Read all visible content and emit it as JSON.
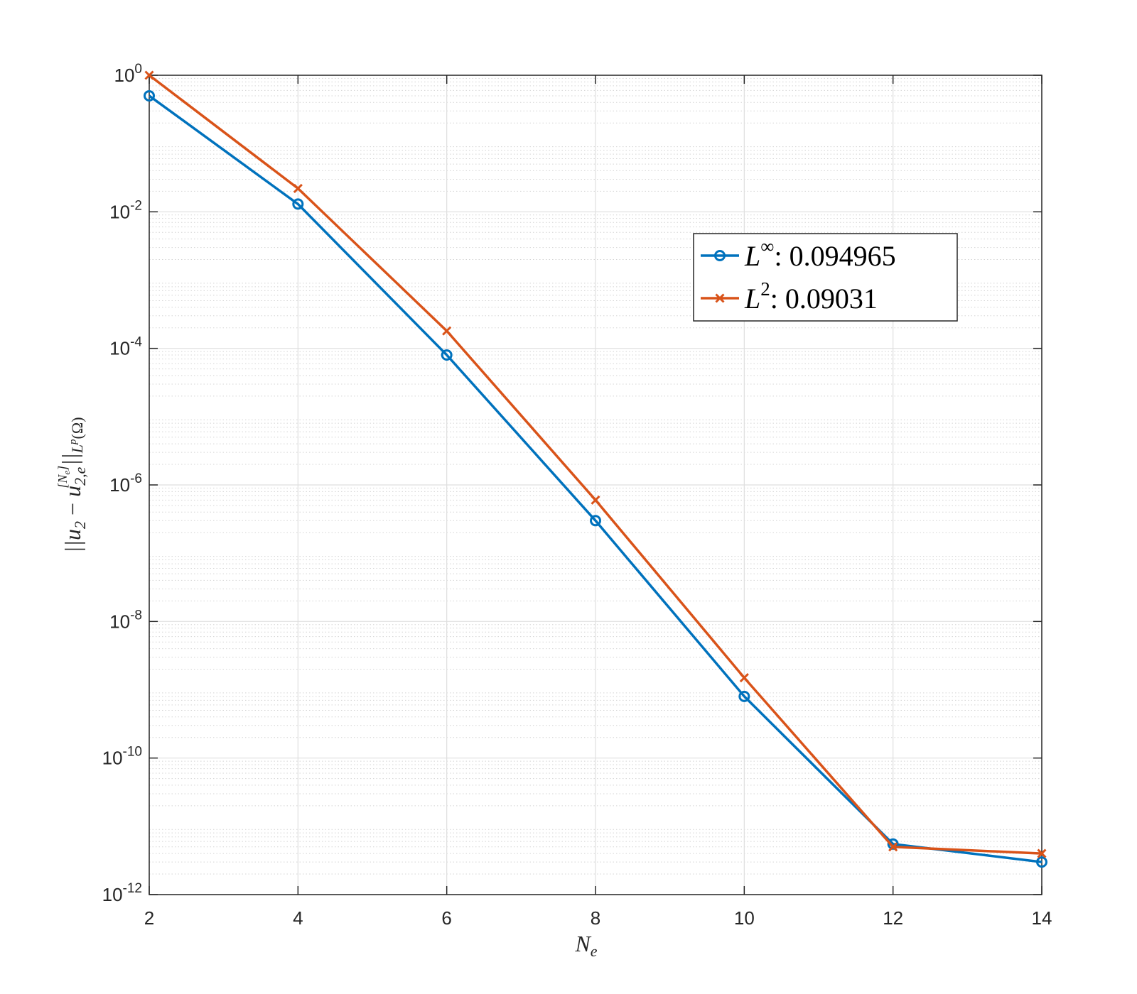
{
  "chart_data": {
    "type": "line",
    "yscale": "log",
    "xlabel": "N_e",
    "ylabel": "||u_2 − u_{2,e}^{[N_e]}||_{L^p(Ω)}",
    "xlim": [
      2,
      14
    ],
    "ylim": [
      1e-12,
      1
    ],
    "grid": true,
    "minor_grid": true,
    "legend_position": "top-right-inside",
    "x_ticks": [
      "2",
      "4",
      "6",
      "8",
      "10",
      "12",
      "14"
    ],
    "y_ticks": [
      {
        "base": "10",
        "exp": "0",
        "value": 1
      },
      {
        "base": "10",
        "exp": "-2",
        "value": 0.01
      },
      {
        "base": "10",
        "exp": "-4",
        "value": 0.0001
      },
      {
        "base": "10",
        "exp": "-6",
        "value": 1e-06
      },
      {
        "base": "10",
        "exp": "-8",
        "value": 1e-08
      },
      {
        "base": "10",
        "exp": "-10",
        "value": 1e-10
      },
      {
        "base": "10",
        "exp": "-12",
        "value": 1e-12
      }
    ],
    "x": [
      2,
      4,
      6,
      8,
      10,
      12,
      14
    ],
    "series": [
      {
        "name": "L^∞: 0.094965",
        "label_base": "L",
        "label_sup": "∞",
        "label_rest": ": 0.094965",
        "color": "#0072BD",
        "marker": "circle",
        "values": [
          0.5,
          0.013,
          8e-05,
          3e-07,
          8e-10,
          5.5e-12,
          3e-12
        ]
      },
      {
        "name": "L^2: 0.09031",
        "label_base": "L",
        "label_sup": "2",
        "label_rest": ": 0.09031",
        "color": "#D95319",
        "marker": "x",
        "values": [
          1.0,
          0.022,
          0.00018,
          6e-07,
          1.5e-09,
          5e-12,
          4e-12
        ]
      }
    ]
  }
}
